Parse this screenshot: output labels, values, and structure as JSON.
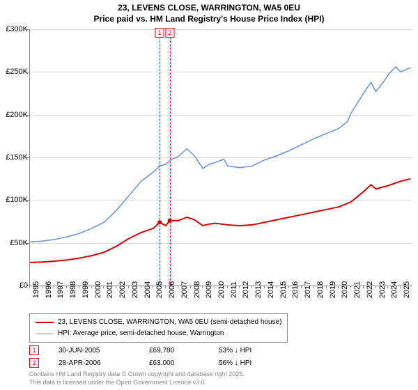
{
  "title_line1": "23, LEVENS CLOSE, WARRINGTON, WA5 0EU",
  "title_line2": "Price paid vs. HM Land Registry's House Price Index (HPI)",
  "chart": {
    "type": "line",
    "x_range": [
      1995,
      2025.9
    ],
    "y_range": [
      0,
      300000
    ],
    "y_ticks": [
      0,
      50000,
      100000,
      150000,
      200000,
      250000,
      300000
    ],
    "y_tick_labels": [
      "£0",
      "£50K",
      "£100K",
      "£150K",
      "£200K",
      "£250K",
      "£300K"
    ],
    "x_ticks": [
      1995,
      1996,
      1997,
      1998,
      1999,
      2000,
      2001,
      2002,
      2003,
      2004,
      2005,
      2006,
      2007,
      2008,
      2009,
      2010,
      2011,
      2012,
      2013,
      2014,
      2015,
      2016,
      2017,
      2018,
      2019,
      2020,
      2021,
      2022,
      2023,
      2024,
      2025
    ],
    "background_color": "#ffffff",
    "grid_color": "#dddddd",
    "axis_color": "#888888",
    "series": [
      {
        "name": "23, LEVENS CLOSE, WARRINGTON, WA5 0EU (semi-detached house)",
        "color": "#d40000",
        "width": 2,
        "data": [
          [
            1995,
            27000
          ],
          [
            1996,
            27500
          ],
          [
            1997,
            28500
          ],
          [
            1998,
            30000
          ],
          [
            1999,
            32000
          ],
          [
            2000,
            35000
          ],
          [
            2001,
            39000
          ],
          [
            2002,
            46000
          ],
          [
            2003,
            55000
          ],
          [
            2004,
            62000
          ],
          [
            2005,
            67000
          ],
          [
            2005.5,
            74000
          ],
          [
            2006,
            70000
          ],
          [
            2006.3,
            76000
          ],
          [
            2007,
            76000
          ],
          [
            2007.7,
            80000
          ],
          [
            2008.3,
            77000
          ],
          [
            2009,
            70000
          ],
          [
            2009.5,
            72000
          ],
          [
            2010,
            73000
          ],
          [
            2011,
            71000
          ],
          [
            2012,
            70000
          ],
          [
            2013,
            71000
          ],
          [
            2014,
            74000
          ],
          [
            2015,
            77000
          ],
          [
            2016,
            80000
          ],
          [
            2017,
            83000
          ],
          [
            2018,
            86000
          ],
          [
            2019,
            89000
          ],
          [
            2020,
            92000
          ],
          [
            2021,
            98000
          ],
          [
            2022,
            110000
          ],
          [
            2022.6,
            118000
          ],
          [
            2023,
            113000
          ],
          [
            2024,
            117000
          ],
          [
            2025,
            122000
          ],
          [
            2025.8,
            125000
          ]
        ]
      },
      {
        "name": "HPI: Average price, semi-detached house, Warrington",
        "color": "#6a8fd0",
        "width": 1.5,
        "data": [
          [
            1995,
            51000
          ],
          [
            1996,
            52000
          ],
          [
            1997,
            54000
          ],
          [
            1998,
            57000
          ],
          [
            1999,
            61000
          ],
          [
            2000,
            67000
          ],
          [
            2001,
            74000
          ],
          [
            2002,
            88000
          ],
          [
            2003,
            105000
          ],
          [
            2004,
            122000
          ],
          [
            2005,
            133000
          ],
          [
            2005.5,
            140000
          ],
          [
            2006,
            142000
          ],
          [
            2006.5,
            148000
          ],
          [
            2007,
            151000
          ],
          [
            2007.7,
            160000
          ],
          [
            2008.3,
            152000
          ],
          [
            2009,
            137000
          ],
          [
            2009.5,
            142000
          ],
          [
            2010,
            144000
          ],
          [
            2010.7,
            148000
          ],
          [
            2011,
            140000
          ],
          [
            2012,
            138000
          ],
          [
            2013,
            140000
          ],
          [
            2014,
            147000
          ],
          [
            2015,
            152000
          ],
          [
            2016,
            158000
          ],
          [
            2017,
            165000
          ],
          [
            2018,
            172000
          ],
          [
            2019,
            178000
          ],
          [
            2020,
            184000
          ],
          [
            2020.7,
            192000
          ],
          [
            2021,
            202000
          ],
          [
            2022,
            225000
          ],
          [
            2022.6,
            238000
          ],
          [
            2023,
            227000
          ],
          [
            2023.7,
            240000
          ],
          [
            2024,
            247000
          ],
          [
            2024.6,
            256000
          ],
          [
            2025,
            250000
          ],
          [
            2025.8,
            255000
          ]
        ]
      }
    ],
    "events": [
      {
        "n": "1",
        "x": 2005.5,
        "band_width": 0.35,
        "color": "#d40000"
      },
      {
        "n": "2",
        "x": 2006.32,
        "band_width": 0.35,
        "color": "#d40000"
      }
    ]
  },
  "legend": {
    "items": [
      {
        "color": "#d40000",
        "width": 2,
        "text": "23, LEVENS CLOSE, WARRINGTON, WA5 0EU (semi-detached house)"
      },
      {
        "color": "#6a8fd0",
        "width": 1.5,
        "text": "HPI: Average price, semi-detached house, Warrington"
      }
    ]
  },
  "transactions": [
    {
      "n": "1",
      "date": "30-JUN-2005",
      "price": "£69,780",
      "delta": "53% ↓ HPI",
      "color": "#d40000"
    },
    {
      "n": "2",
      "date": "28-APR-2006",
      "price": "£63,000",
      "delta": "56% ↓ HPI",
      "color": "#d40000"
    }
  ],
  "copyright_line1": "Contains HM Land Registry data © Crown copyright and database right 2025.",
  "copyright_line2": "This data is licensed under the Open Government Licence v3.0."
}
